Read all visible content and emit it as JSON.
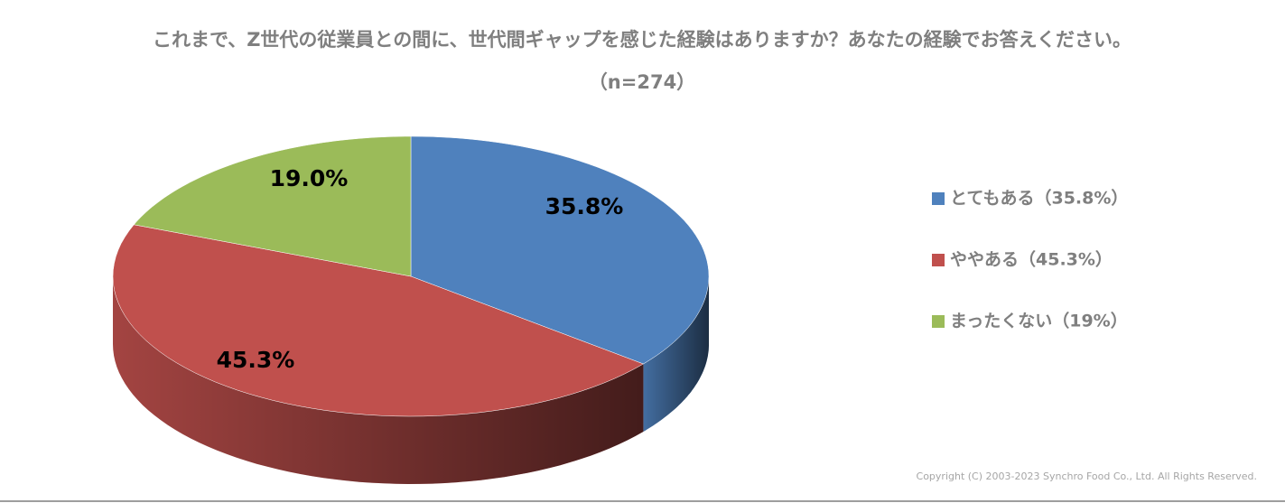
{
  "chart_data": {
    "type": "pie",
    "title": "これまで、Z世代の従業員との間に、世代間ギャップを感じた経験はありますか？あなたの経験でお答えください。",
    "subtitle": "（n=274）",
    "categories": [
      "とてもある（35.8%）",
      "ややある（45.3%）",
      "まったくない（19%）"
    ],
    "values": [
      35.8,
      45.3,
      19.0
    ],
    "value_labels": [
      "35.8%",
      "45.3%",
      "19.0%"
    ],
    "colors": [
      "#4f81bd",
      "#c0504d",
      "#9bbb59"
    ],
    "legend": "right"
  },
  "footer": {
    "copyright": "Copyright (C) 2003-2023   Synchro Food Co., Ltd. All Rights Reserved."
  }
}
